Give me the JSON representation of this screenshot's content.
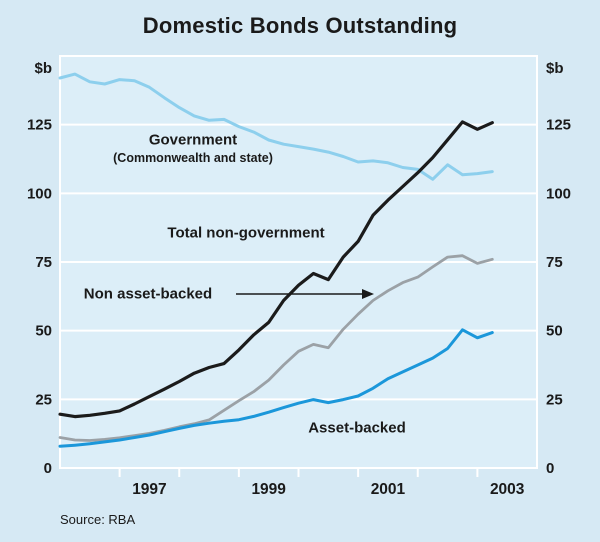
{
  "title": "Domestic Bonds Outstanding",
  "source": "Source: RBA",
  "annotations": {
    "government": "Government",
    "government_sub": "(Commonwealth and state)",
    "total_non_government": "Total non-government",
    "non_asset_backed": "Non asset-backed",
    "asset_backed": "Asset-backed"
  },
  "colors": {
    "figure_bg": "#d6e9f4",
    "plot_bg": "#dceef8",
    "grid": "#ffffff",
    "text": "#1a1a1a"
  },
  "chart_data": {
    "type": "line",
    "title": "Domestic Bonds Outstanding",
    "unit": "$b",
    "xlabel": "",
    "ylabel": "$b",
    "grid": true,
    "legend_position": "inline-annotations",
    "ylim": [
      0,
      150
    ],
    "ytick_labels": [
      0,
      25,
      50,
      75,
      100,
      125
    ],
    "xlim": [
      1996,
      2004
    ],
    "x_tick_years": [
      1997,
      1998,
      1999,
      2000,
      2001,
      2002,
      2003
    ],
    "x_axis_labels": [
      {
        "label": "1997",
        "x": 1997.5
      },
      {
        "label": "1999",
        "x": 1999.5
      },
      {
        "label": "2001",
        "x": 2001.5
      },
      {
        "label": "2003",
        "x": 2003.5
      }
    ],
    "x": [
      1996.0,
      1996.25,
      1996.5,
      1996.75,
      1997.0,
      1997.25,
      1997.5,
      1997.75,
      1998.0,
      1998.25,
      1998.5,
      1998.75,
      1999.0,
      1999.25,
      1999.5,
      1999.75,
      2000.0,
      2000.25,
      2000.5,
      2000.75,
      2001.0,
      2001.25,
      2001.5,
      2001.75,
      2002.0,
      2002.25,
      2002.5,
      2002.75,
      2003.0,
      2003.25
    ],
    "series": [
      {
        "key": "government",
        "name": "Government (Commonwealth and state)",
        "color": "#8dcfed",
        "values": [
          142.0,
          143.4,
          140.6,
          139.8,
          141.4,
          141.0,
          138.6,
          134.8,
          131.2,
          128.2,
          126.6,
          126.9,
          124.3,
          122.3,
          119.4,
          117.9,
          117.0,
          116.1,
          115.0,
          113.4,
          111.4,
          111.8,
          111.1,
          109.4,
          108.7,
          105.1,
          110.4,
          106.8,
          107.2,
          107.9
        ]
      },
      {
        "key": "total_non_government",
        "name": "Total non-government",
        "color": "#1b1b1b",
        "values": [
          19.6,
          18.7,
          19.2,
          19.9,
          20.8,
          23.3,
          26.0,
          28.7,
          31.5,
          34.5,
          36.6,
          38.0,
          43.0,
          48.5,
          53.0,
          61.0,
          66.5,
          70.8,
          68.6,
          76.8,
          82.5,
          92.0,
          97.5,
          102.5,
          107.5,
          113.0,
          119.5,
          126.0,
          123.3,
          125.7
        ]
      },
      {
        "key": "non_asset_backed",
        "name": "Non asset-backed",
        "color": "#9ba1a6",
        "values": [
          11.1,
          10.2,
          10.0,
          10.4,
          11.0,
          11.8,
          12.6,
          13.7,
          15.0,
          16.1,
          17.5,
          21.0,
          24.5,
          27.8,
          32.0,
          37.5,
          42.5,
          45.0,
          43.8,
          50.5,
          56.0,
          61.0,
          64.5,
          67.5,
          69.5,
          73.2,
          76.8,
          77.3,
          74.5,
          76.0
        ]
      },
      {
        "key": "asset_backed",
        "name": "Asset-backed",
        "color": "#1b97da",
        "values": [
          7.9,
          8.3,
          8.8,
          9.5,
          10.2,
          11.1,
          12.0,
          13.2,
          14.4,
          15.5,
          16.3,
          17.0,
          17.6,
          18.8,
          20.3,
          22.0,
          23.6,
          24.9,
          23.8,
          24.9,
          26.2,
          29.0,
          32.5,
          35.0,
          37.5,
          40.0,
          43.5,
          50.3,
          47.4,
          49.3
        ]
      }
    ]
  }
}
